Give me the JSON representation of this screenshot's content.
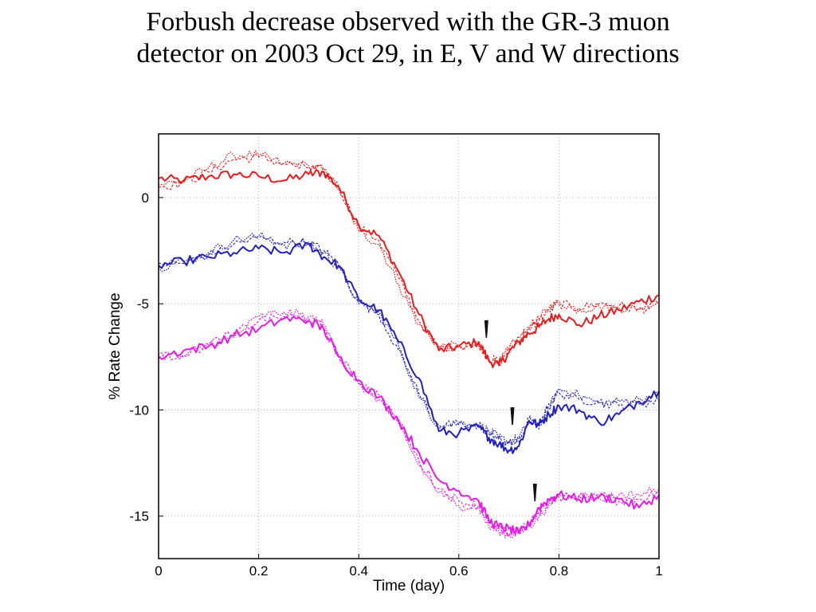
{
  "slide": {
    "title_line1": "Forbush decrease observed with the GR-3 muon",
    "title_line2": "detector on 2003 Oct 29, in  E, V and W directions"
  },
  "chart_data": {
    "type": "line",
    "title": "",
    "xlabel": "Time (day)",
    "ylabel": "% Rate Change",
    "xlim": [
      0,
      1
    ],
    "ylim": [
      -17,
      3
    ],
    "xticks": [
      0,
      0.2,
      0.4,
      0.6,
      0.8,
      1
    ],
    "xtick_labels": [
      "0",
      "0.2",
      "0.4",
      "0.6",
      "0.8",
      "1"
    ],
    "yticks": [
      0,
      -5,
      -10,
      -15
    ],
    "ytick_labels": [
      "0",
      "-5",
      "-10",
      "-15"
    ],
    "grid": true,
    "legend": "none",
    "x": [
      0,
      0.05,
      0.1,
      0.15,
      0.2,
      0.25,
      0.3,
      0.33,
      0.36,
      0.4,
      0.44,
      0.48,
      0.52,
      0.56,
      0.6,
      0.64,
      0.66,
      0.68,
      0.7,
      0.72,
      0.74,
      0.76,
      0.78,
      0.8,
      0.84,
      0.88,
      0.92,
      0.96,
      1
    ],
    "series": [
      {
        "color": "#e02020",
        "style": "solid",
        "values": [
          0.9,
          0.8,
          1.0,
          1.1,
          1.0,
          0.8,
          1.1,
          1.2,
          0.5,
          -1.3,
          -1.8,
          -3.5,
          -5.5,
          -7.2,
          -7.0,
          -6.8,
          -7.7,
          -7.9,
          -7.3,
          -6.8,
          -6.4,
          -6.1,
          -5.7,
          -5.5,
          -6.0,
          -5.6,
          -5.3,
          -4.9,
          -4.6
        ]
      },
      {
        "color": "#e02020",
        "style": "dotted",
        "values": [
          0.6,
          0.8,
          1.4,
          2.0,
          2.0,
          1.6,
          1.5,
          1.3,
          0.4,
          -1.6,
          -2.2,
          -4.1,
          -6.0,
          -7.0,
          -7.0,
          -7.0,
          -7.6,
          -7.8,
          -7.1,
          -6.6,
          -6.1,
          -5.7,
          -5.2,
          -4.9,
          -5.3,
          -5.1,
          -5.2,
          -5.2,
          -4.9
        ]
      },
      {
        "color": "#e02020",
        "style": "dashed",
        "values": [
          0.5,
          0.7,
          1.2,
          1.8,
          1.9,
          1.6,
          1.4,
          1.3,
          0.5,
          -1.4,
          -2.0,
          -3.8,
          -5.8,
          -7.1,
          -7.0,
          -6.9,
          -7.6,
          -7.7,
          -7.2,
          -6.7,
          -6.2,
          -5.8,
          -5.3,
          -5.0,
          -5.2,
          -5.0,
          -5.1,
          -5.3,
          -5.0
        ]
      },
      {
        "color": "#2323b4",
        "style": "solid",
        "values": [
          -3.2,
          -3.0,
          -2.8,
          -2.6,
          -2.4,
          -2.6,
          -2.2,
          -2.8,
          -3.2,
          -4.8,
          -5.3,
          -6.8,
          -8.5,
          -11.0,
          -11.1,
          -10.8,
          -11.3,
          -11.6,
          -11.9,
          -11.7,
          -10.5,
          -10.7,
          -10.2,
          -9.8,
          -10.0,
          -10.6,
          -10.2,
          -9.6,
          -9.1
        ]
      },
      {
        "color": "#2323b4",
        "style": "dotted",
        "values": [
          -3.3,
          -3.0,
          -2.6,
          -2.0,
          -1.8,
          -2.2,
          -2.2,
          -2.6,
          -3.3,
          -5.0,
          -5.4,
          -7.0,
          -9.4,
          -10.8,
          -10.6,
          -10.7,
          -11.0,
          -11.3,
          -11.5,
          -11.3,
          -10.6,
          -10.7,
          -9.9,
          -9.0,
          -9.3,
          -9.7,
          -9.6,
          -9.5,
          -9.3
        ]
      },
      {
        "color": "#2323b4",
        "style": "dashed",
        "values": [
          -3.1,
          -3.1,
          -2.7,
          -2.2,
          -1.9,
          -2.1,
          -2.1,
          -2.5,
          -3.2,
          -4.9,
          -5.5,
          -7.2,
          -9.2,
          -10.7,
          -10.7,
          -10.8,
          -11.1,
          -11.4,
          -11.6,
          -11.5,
          -10.4,
          -10.9,
          -9.7,
          -9.2,
          -9.5,
          -9.6,
          -9.8,
          -9.7,
          -9.6
        ]
      },
      {
        "color": "#e020e0",
        "style": "solid",
        "values": [
          -7.5,
          -7.2,
          -7.0,
          -6.5,
          -6.2,
          -5.7,
          -5.8,
          -6.2,
          -7.5,
          -8.6,
          -9.4,
          -10.5,
          -12.0,
          -13.3,
          -13.8,
          -14.3,
          -15.2,
          -15.5,
          -15.6,
          -15.8,
          -15.4,
          -14.6,
          -14.2,
          -14.0,
          -14.2,
          -14.1,
          -14.2,
          -14.6,
          -14.0
        ]
      },
      {
        "color": "#e020e0",
        "style": "dotted",
        "values": [
          -7.4,
          -7.5,
          -6.9,
          -6.6,
          -5.6,
          -5.4,
          -5.6,
          -6.0,
          -7.4,
          -8.8,
          -9.5,
          -10.7,
          -12.6,
          -13.9,
          -14.5,
          -14.6,
          -15.5,
          -15.7,
          -15.9,
          -15.8,
          -15.5,
          -15.0,
          -14.5,
          -14.0,
          -14.0,
          -14.2,
          -14.0,
          -14.0,
          -13.7
        ]
      },
      {
        "color": "#e020e0",
        "style": "dashed",
        "values": [
          -7.5,
          -7.4,
          -6.9,
          -6.4,
          -5.8,
          -5.6,
          -5.7,
          -6.1,
          -7.5,
          -8.7,
          -9.3,
          -10.6,
          -12.4,
          -13.7,
          -14.3,
          -14.5,
          -15.3,
          -15.6,
          -15.8,
          -15.7,
          -15.4,
          -14.8,
          -14.3,
          -14.1,
          -14.1,
          -14.0,
          -14.3,
          -14.2,
          -13.9
        ]
      }
    ],
    "markers": [
      {
        "x": 0.655,
        "y": -6.3,
        "type": "arrow-down"
      },
      {
        "x": 0.707,
        "y": -10.4,
        "type": "arrow-down"
      },
      {
        "x": 0.752,
        "y": -14.0,
        "type": "arrow-down"
      }
    ]
  }
}
